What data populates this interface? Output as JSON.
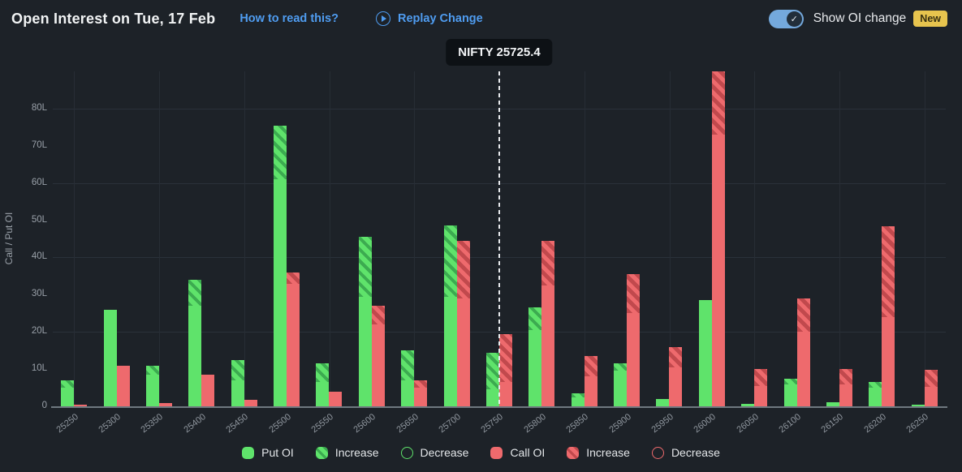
{
  "header": {
    "title": "Open Interest on Tue, 17 Feb",
    "how_to_read_link": "How to read this?",
    "replay_button": "Replay Change",
    "toggle_label": "Show OI change",
    "toggle_state": "on",
    "new_badge": "New"
  },
  "legend": {
    "items": [
      {
        "label": "Put OI"
      },
      {
        "label": "Increase"
      },
      {
        "label": "Decrease"
      },
      {
        "label": "Call OI"
      },
      {
        "label": "Increase"
      },
      {
        "label": "Decrease"
      }
    ]
  },
  "colors": {
    "background": "#1d2228",
    "put_green": "#5fe36b",
    "put_green_dark": "#3cab50",
    "call_red": "#ee6a6d",
    "call_red_dark": "#c1494d",
    "link_blue": "#4f9cf0",
    "badge_yellow": "#e7c44e",
    "toggle_blue": "#74a9dd"
  },
  "chart_data": {
    "type": "bar",
    "title": "Open Interest on Tue, 17 Feb",
    "unit": "lakh (L)",
    "ylabel": "Call / Put OI",
    "ylim": [
      0,
      90
    ],
    "ytick_labels": [
      "0",
      "10L",
      "20L",
      "30L",
      "40L",
      "50L",
      "60L",
      "70L",
      "80L"
    ],
    "gridlines_at": [
      20,
      40,
      60,
      80
    ],
    "legend_position": "bottom",
    "categories": [
      "25250",
      "25300",
      "25350",
      "25400",
      "25450",
      "25500",
      "25550",
      "25600",
      "25650",
      "25700",
      "25750",
      "25800",
      "25850",
      "25900",
      "25950",
      "26000",
      "26050",
      "26100",
      "26150",
      "26200",
      "26250"
    ],
    "series": [
      {
        "name": "Put OI",
        "role": "put-total",
        "values": [
          7,
          25.5,
          11,
          34,
          12.5,
          75.5,
          11.5,
          45.5,
          15,
          48.5,
          14.5,
          26.5,
          3.5,
          11.5,
          2,
          28.5,
          0.7,
          7.5,
          1,
          6.5,
          0.5
        ]
      },
      {
        "name": "Put OI Increase",
        "role": "put-increase",
        "values": [
          2,
          0,
          2.5,
          7,
          5.5,
          14.5,
          5,
          16,
          8,
          19,
          10,
          6,
          1,
          2,
          0,
          0,
          0,
          1.5,
          0,
          1.5,
          0
        ]
      },
      {
        "name": "Put OI Decrease",
        "role": "put-decrease",
        "values": [
          0,
          0.5,
          0,
          0,
          0,
          0,
          0,
          0,
          0,
          0,
          0,
          0,
          0,
          0,
          0,
          0,
          0,
          0,
          0,
          0,
          0
        ]
      },
      {
        "name": "Call OI",
        "role": "call-total",
        "values": [
          0.5,
          10.5,
          0.8,
          8.5,
          1.8,
          36,
          4,
          27,
          7,
          44.5,
          19.5,
          44.5,
          13.5,
          35.5,
          16,
          90,
          10,
          29,
          10,
          48.5,
          9.8
        ]
      },
      {
        "name": "Call OI Increase",
        "role": "call-increase",
        "values": [
          0,
          0,
          0,
          0,
          0,
          3,
          0,
          5,
          2,
          15.5,
          13,
          12,
          5.5,
          10.5,
          5.5,
          17,
          4.5,
          9,
          4,
          24.5,
          4.5
        ]
      },
      {
        "name": "Call OI Decrease",
        "role": "call-decrease",
        "values": [
          0,
          0.5,
          0,
          0,
          0,
          0,
          0,
          0,
          0,
          0,
          0,
          0,
          0,
          0,
          0,
          0,
          0,
          0,
          0,
          0,
          0
        ]
      }
    ],
    "nifty_line": {
      "label": "NIFTY 25725.4",
      "value": 25725.4,
      "at_strike_index": 10
    }
  }
}
